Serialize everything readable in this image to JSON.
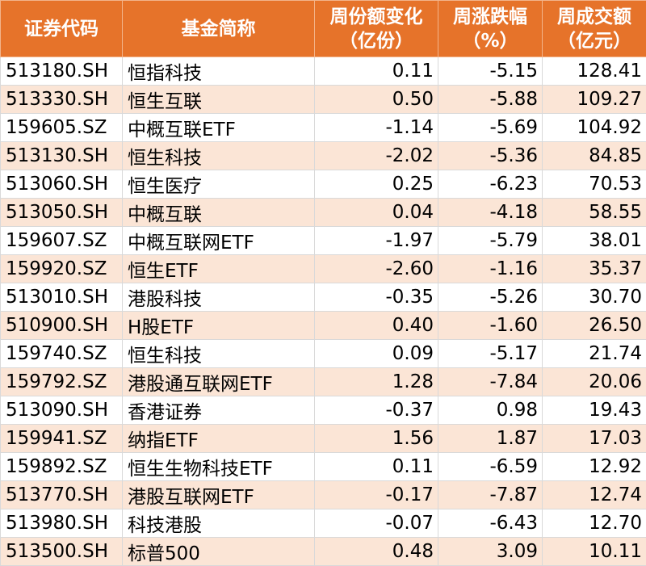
{
  "header": {
    "code": "证券代码",
    "name": "基金简称",
    "share_change": [
      "周份额变化",
      "（亿份）"
    ],
    "weekly_change": [
      "周涨跌幅",
      "（%）"
    ],
    "turnover": [
      "周成交额",
      "（亿元）"
    ]
  },
  "rows": [
    {
      "code": "513180.SH",
      "name": "恒指科技",
      "share_change": "0.11",
      "weekly_change": "-5.15",
      "turnover": "128.41"
    },
    {
      "code": "513330.SH",
      "name": "恒生互联",
      "share_change": "0.50",
      "weekly_change": "-5.88",
      "turnover": "109.27"
    },
    {
      "code": "159605.SZ",
      "name": "中概互联ETF",
      "share_change": "-1.14",
      "weekly_change": "-5.69",
      "turnover": "104.92"
    },
    {
      "code": "513130.SH",
      "name": "恒生科技",
      "share_change": "-2.02",
      "weekly_change": "-5.36",
      "turnover": "84.85"
    },
    {
      "code": "513060.SH",
      "name": "恒生医疗",
      "share_change": "0.25",
      "weekly_change": "-6.23",
      "turnover": "70.53"
    },
    {
      "code": "513050.SH",
      "name": "中概互联",
      "share_change": "0.04",
      "weekly_change": "-4.18",
      "turnover": "58.55"
    },
    {
      "code": "159607.SZ",
      "name": "中概互联网ETF",
      "share_change": "-1.97",
      "weekly_change": "-5.79",
      "turnover": "38.01"
    },
    {
      "code": "159920.SZ",
      "name": "恒生ETF",
      "share_change": "-2.60",
      "weekly_change": "-1.16",
      "turnover": "35.37"
    },
    {
      "code": "513010.SH",
      "name": "港股科技",
      "share_change": "-0.35",
      "weekly_change": "-5.26",
      "turnover": "30.70"
    },
    {
      "code": "510900.SH",
      "name": "H股ETF",
      "share_change": "0.40",
      "weekly_change": "-1.60",
      "turnover": "26.50"
    },
    {
      "code": "159740.SZ",
      "name": "恒生科技",
      "share_change": "0.09",
      "weekly_change": "-5.17",
      "turnover": "21.74"
    },
    {
      "code": "159792.SZ",
      "name": "港股通互联网ETF",
      "share_change": "1.28",
      "weekly_change": "-7.84",
      "turnover": "20.06"
    },
    {
      "code": "513090.SH",
      "name": "香港证券",
      "share_change": "-0.37",
      "weekly_change": "0.98",
      "turnover": "19.43"
    },
    {
      "code": "159941.SZ",
      "name": "纳指ETF",
      "share_change": "1.56",
      "weekly_change": "1.87",
      "turnover": "17.03"
    },
    {
      "code": "159892.SZ",
      "name": "恒生生物科技ETF",
      "share_change": "0.11",
      "weekly_change": "-6.59",
      "turnover": "12.92"
    },
    {
      "code": "513770.SH",
      "name": "港股互联网ETF",
      "share_change": "-0.17",
      "weekly_change": "-7.87",
      "turnover": "12.74"
    },
    {
      "code": "513980.SH",
      "name": "科技港股",
      "share_change": "-0.07",
      "weekly_change": "-6.43",
      "turnover": "12.70"
    },
    {
      "code": "513500.SH",
      "name": "标普500",
      "share_change": "0.48",
      "weekly_change": "3.09",
      "turnover": "10.11"
    }
  ],
  "colors": {
    "header_bg": "#e6732a",
    "header_text": "#ffffff",
    "row_alt_bg": "#fbe5d6",
    "row_bg": "#ffffff"
  }
}
